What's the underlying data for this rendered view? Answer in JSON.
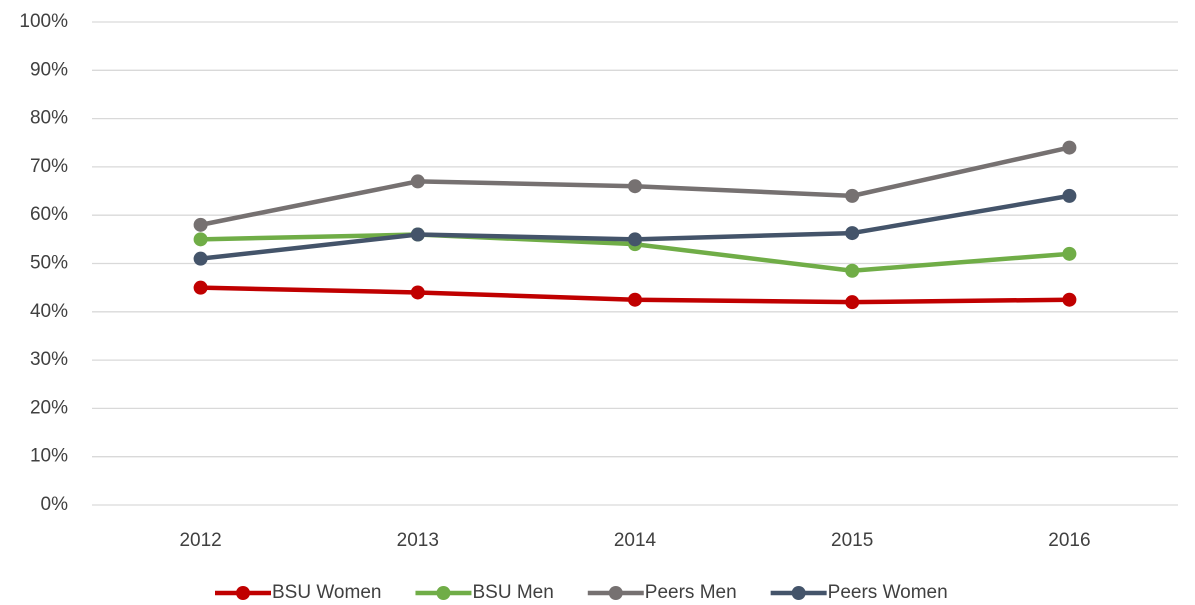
{
  "chart_data": {
    "type": "line",
    "categories": [
      "2012",
      "2013",
      "2014",
      "2015",
      "2016"
    ],
    "series": [
      {
        "name": "BSU Women",
        "color": "#c00000",
        "values": [
          45,
          44,
          42.5,
          42,
          42.5
        ]
      },
      {
        "name": "BSU Men",
        "color": "#70ad47",
        "values": [
          55,
          56,
          54,
          48.5,
          52
        ]
      },
      {
        "name": "Peers Men",
        "color": "#767171",
        "values": [
          58,
          67,
          66,
          64,
          74
        ]
      },
      {
        "name": "Peers Women",
        "color": "#44546a",
        "values": [
          51,
          56,
          55,
          56.3,
          64
        ]
      }
    ],
    "ylim": [
      0,
      100
    ],
    "yticks": [
      {
        "value": 0,
        "label": "0%"
      },
      {
        "value": 10,
        "label": "10%"
      },
      {
        "value": 20,
        "label": "20%"
      },
      {
        "value": 30,
        "label": "30%"
      },
      {
        "value": 40,
        "label": "40%"
      },
      {
        "value": 50,
        "label": "50%"
      },
      {
        "value": 60,
        "label": "60%"
      },
      {
        "value": 70,
        "label": "70%"
      },
      {
        "value": 80,
        "label": "80%"
      },
      {
        "value": 90,
        "label": "90%"
      },
      {
        "value": 100,
        "label": "100%"
      }
    ],
    "grid": true,
    "legend": "bottom"
  }
}
